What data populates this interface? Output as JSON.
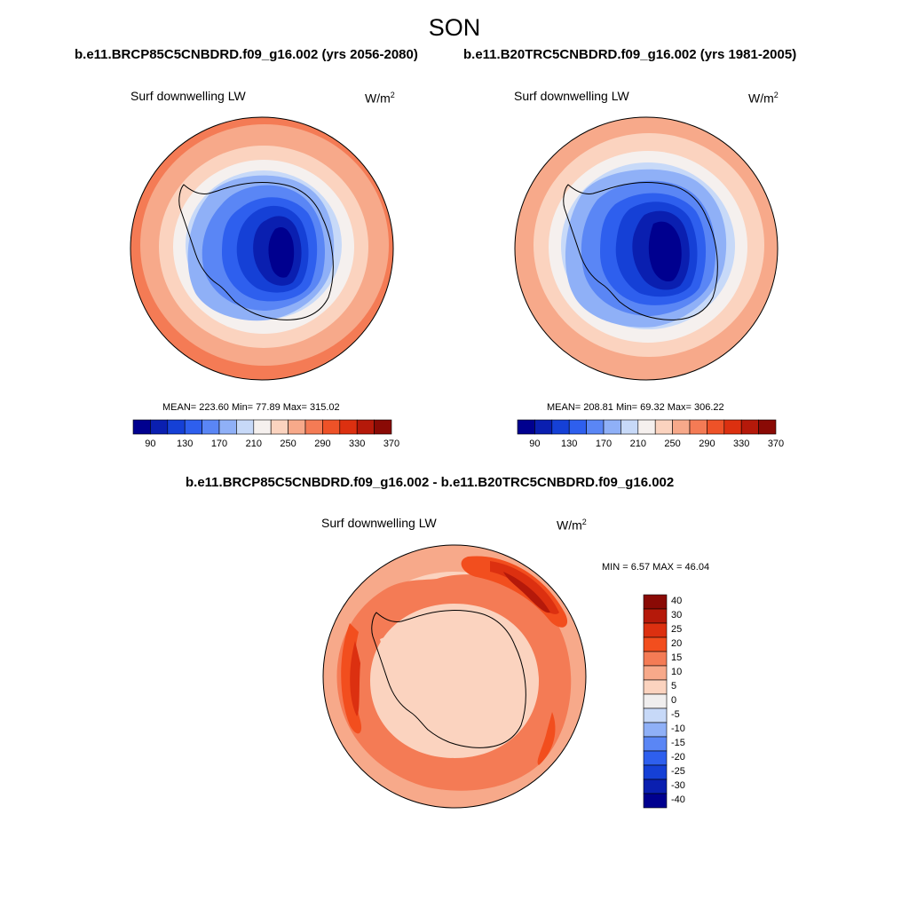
{
  "title": "SON",
  "left_panel": {
    "case": "b.e11.BRCP85C5CNBDRD.f09_g16.002 (yrs 2056-2080)",
    "variable": "Surf downwelling LW",
    "units": "W/m",
    "units_exp": "2",
    "stats": "MEAN= 223.60  Min=  77.89  Max= 315.02"
  },
  "right_panel": {
    "case": "b.e11.B20TRC5CNBDRD.f09_g16.002 (yrs 1981-2005)",
    "variable": "Surf downwelling LW",
    "units": "W/m",
    "units_exp": "2",
    "stats": "MEAN= 208.81  Min=  69.32  Max= 306.22"
  },
  "diff_panel": {
    "case": "b.e11.BRCP85C5CNBDRD.f09_g16.002 - b.e11.B20TRC5CNBDRD.f09_g16.002",
    "variable": "Surf downwelling LW",
    "units": "W/m",
    "units_exp": "2",
    "stats": "MIN =   6.57 MAX =  46.04"
  },
  "colorbar_abs": {
    "colors": [
      "#00008f",
      "#0a1fb0",
      "#1540d6",
      "#2e5fee",
      "#5a86f5",
      "#8fb0f7",
      "#c7d9f8",
      "#f5f0ee",
      "#fbd3bf",
      "#f7a98a",
      "#f47b55",
      "#ee5228",
      "#dc3010",
      "#b5190a",
      "#8a0a05"
    ],
    "labels": [
      "90",
      "130",
      "170",
      "210",
      "250",
      "290",
      "330",
      "370"
    ]
  },
  "colorbar_diff": {
    "colors": [
      "#8a0a05",
      "#b5190a",
      "#dc3010",
      "#f24e1e",
      "#f47b55",
      "#f7a98a",
      "#fbd3bf",
      "#f0eeee",
      "#c7d9f8",
      "#8fb0f7",
      "#5a86f5",
      "#2e5fee",
      "#1540d6",
      "#0a1fb0",
      "#00008f"
    ],
    "labels": [
      "40",
      "30",
      "25",
      "20",
      "15",
      "10",
      "5",
      "0",
      "-5",
      "-10",
      "-15",
      "-20",
      "-25",
      "-30",
      "-40"
    ]
  }
}
